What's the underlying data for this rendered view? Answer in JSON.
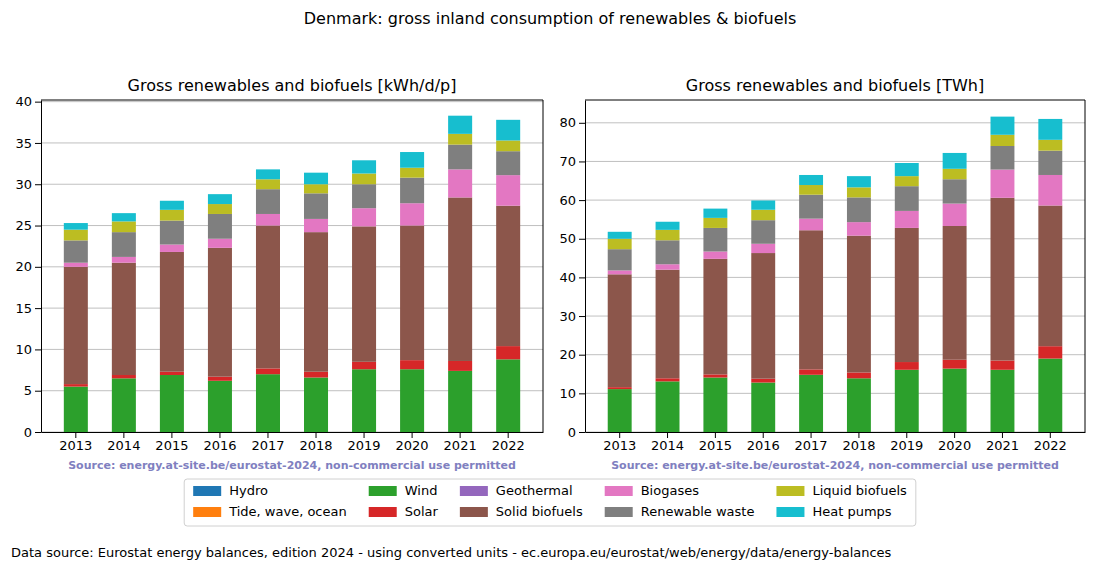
{
  "title": "Denmark: gross inland consumption of renewables & biofuels",
  "data_source": "Data source: Eurostat energy balances, edition 2024 - using converted units - ec.europa.eu/eurostat/web/energy/data/energy-balances",
  "chart_data": [
    {
      "type": "bar",
      "stacked": true,
      "grid": true,
      "legend": "lower center",
      "title": "Gross renewables and biofuels [kWh/d/p]",
      "source": "Source: energy.at-site.be/eurostat-2024, non-commercial use permitted",
      "categories": [
        "2013",
        "2014",
        "2015",
        "2016",
        "2017",
        "2018",
        "2019",
        "2020",
        "2021",
        "2022"
      ],
      "ylim": [
        0,
        40.2
      ],
      "yticks": [
        0,
        5,
        10,
        15,
        20,
        25,
        30,
        35,
        40
      ],
      "series": [
        {
          "name": "Hydro",
          "color": "#1f77b4",
          "values": [
            0,
            0,
            0,
            0,
            0,
            0,
            0,
            0,
            0,
            0
          ]
        },
        {
          "name": "Tide, wave, ocean",
          "color": "#ff7f0e",
          "values": [
            0,
            0,
            0,
            0,
            0,
            0,
            0,
            0,
            0,
            0
          ]
        },
        {
          "name": "Wind",
          "color": "#2ca02c",
          "values": [
            5.5,
            6.5,
            6.9,
            6.2,
            7.0,
            6.6,
            7.6,
            7.6,
            7.4,
            8.8
          ]
        },
        {
          "name": "Solar",
          "color": "#d62728",
          "values": [
            0.3,
            0.4,
            0.4,
            0.5,
            0.7,
            0.7,
            0.9,
            1.1,
            1.2,
            1.6
          ]
        },
        {
          "name": "Geothermal",
          "color": "#9467bd",
          "values": [
            0,
            0,
            0,
            0,
            0,
            0,
            0,
            0,
            0,
            0
          ]
        },
        {
          "name": "Solid biofuels",
          "color": "#8c564b",
          "values": [
            14.2,
            13.6,
            14.5,
            15.6,
            17.3,
            16.9,
            16.4,
            16.3,
            19.8,
            17.0
          ]
        },
        {
          "name": "Biogases",
          "color": "#e377c2",
          "values": [
            0.5,
            0.7,
            0.9,
            1.1,
            1.4,
            1.6,
            2.2,
            2.7,
            3.4,
            3.7
          ]
        },
        {
          "name": "Renewable waste",
          "color": "#7f7f7f",
          "values": [
            2.7,
            3.0,
            2.9,
            3.0,
            3.0,
            3.1,
            2.9,
            3.1,
            3.0,
            2.9
          ]
        },
        {
          "name": "Liquid biofuels",
          "color": "#bcbd22",
          "values": [
            1.3,
            1.3,
            1.3,
            1.2,
            1.2,
            1.1,
            1.3,
            1.2,
            1.3,
            1.3
          ]
        },
        {
          "name": "Heat pumps",
          "color": "#17becf",
          "values": [
            0.8,
            1.0,
            1.1,
            1.2,
            1.2,
            1.4,
            1.6,
            1.9,
            2.2,
            2.5
          ]
        }
      ]
    },
    {
      "type": "bar",
      "stacked": true,
      "grid": true,
      "title": "Gross renewables and biofuels [TWh]",
      "source": "Source: energy.at-site.be/eurostat-2024, non-commercial use permitted",
      "categories": [
        "2013",
        "2014",
        "2015",
        "2016",
        "2017",
        "2018",
        "2019",
        "2020",
        "2021",
        "2022"
      ],
      "ylim": [
        0,
        85.9
      ],
      "yticks": [
        0,
        10,
        20,
        30,
        40,
        50,
        60,
        70,
        80
      ],
      "series": [
        {
          "name": "Hydro",
          "color": "#1f77b4",
          "values": [
            0,
            0,
            0,
            0,
            0,
            0,
            0,
            0,
            0,
            0
          ]
        },
        {
          "name": "Tide, wave, ocean",
          "color": "#ff7f0e",
          "values": [
            0,
            0,
            0,
            0,
            0,
            0,
            0,
            0,
            0,
            0
          ]
        },
        {
          "name": "Wind",
          "color": "#2ca02c",
          "values": [
            11.1,
            13.1,
            14.1,
            12.8,
            14.8,
            13.9,
            16.1,
            16.4,
            16.1,
            19.0
          ]
        },
        {
          "name": "Solar",
          "color": "#d62728",
          "values": [
            0.5,
            0.8,
            0.8,
            1.0,
            1.4,
            1.5,
            2.0,
            2.3,
            2.4,
            3.2
          ]
        },
        {
          "name": "Geothermal",
          "color": "#9467bd",
          "values": [
            0,
            0,
            0,
            0,
            0,
            0,
            0,
            0,
            0,
            0
          ]
        },
        {
          "name": "Solid biofuels",
          "color": "#8c564b",
          "values": [
            29.2,
            28.1,
            29.9,
            32.5,
            36.0,
            35.4,
            34.7,
            34.6,
            42.1,
            36.4
          ]
        },
        {
          "name": "Biogases",
          "color": "#e377c2",
          "values": [
            1.0,
            1.4,
            1.9,
            2.4,
            3.0,
            3.5,
            4.4,
            5.8,
            7.3,
            7.9
          ]
        },
        {
          "name": "Renewable waste",
          "color": "#7f7f7f",
          "values": [
            5.5,
            6.2,
            6.1,
            6.1,
            6.2,
            6.4,
            6.4,
            6.3,
            6.1,
            6.3
          ]
        },
        {
          "name": "Liquid biofuels",
          "color": "#bcbd22",
          "values": [
            2.7,
            2.7,
            2.6,
            2.7,
            2.5,
            2.6,
            2.6,
            2.7,
            2.9,
            2.8
          ]
        },
        {
          "name": "Heat pumps",
          "color": "#17becf",
          "values": [
            1.8,
            2.1,
            2.4,
            2.4,
            2.6,
            2.9,
            3.4,
            4.1,
            4.7,
            5.4
          ]
        }
      ]
    }
  ]
}
